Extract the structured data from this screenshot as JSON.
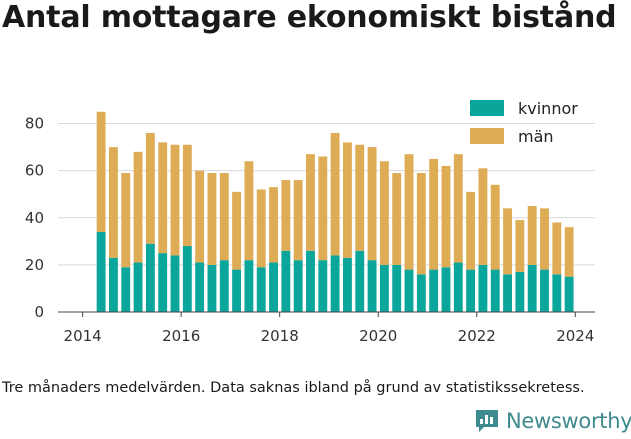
{
  "title": "Antal mottagare ekonomiskt bistånd",
  "footnote": "Tre månaders medelvärden. Data saknas ibland på grund av statistikssekretess.",
  "brand": {
    "name": "Newsworthy",
    "icon": "newsworthy-logo-icon",
    "color": "#3d8b8f"
  },
  "colors": {
    "kvinnor": "#0aa59b",
    "man": "#deac54",
    "grid": "#d9d9d9",
    "axis": "#444444"
  },
  "chart_data": {
    "type": "bar",
    "stacked": true,
    "x_start": "2014-05",
    "x_step_months": 3,
    "xlim": [
      2013.5,
      2024.4
    ],
    "ylim": [
      0,
      90
    ],
    "xticks": [
      2014,
      2016,
      2018,
      2020,
      2022,
      2024
    ],
    "yticks": [
      0,
      20,
      40,
      60,
      80
    ],
    "grid": true,
    "legend": "top-right",
    "series": [
      {
        "name": "kvinnor",
        "color": "#0aa59b",
        "values": [
          34,
          23,
          19,
          21,
          29,
          25,
          24,
          28,
          21,
          20,
          22,
          18,
          22,
          19,
          21,
          26,
          22,
          26,
          22,
          24,
          23,
          26,
          22,
          20,
          20,
          18,
          16,
          18,
          19,
          21,
          18,
          20,
          18,
          16,
          17,
          20,
          18,
          16,
          15
        ]
      },
      {
        "name": "män",
        "color": "#deac54",
        "values": [
          51,
          47,
          40,
          47,
          47,
          47,
          47,
          43,
          39,
          39,
          37,
          33,
          42,
          33,
          32,
          30,
          34,
          41,
          44,
          52,
          49,
          45,
          48,
          44,
          39,
          49,
          43,
          47,
          43,
          46,
          33,
          41,
          36,
          28,
          22,
          25,
          26,
          22,
          21
        ]
      }
    ]
  }
}
